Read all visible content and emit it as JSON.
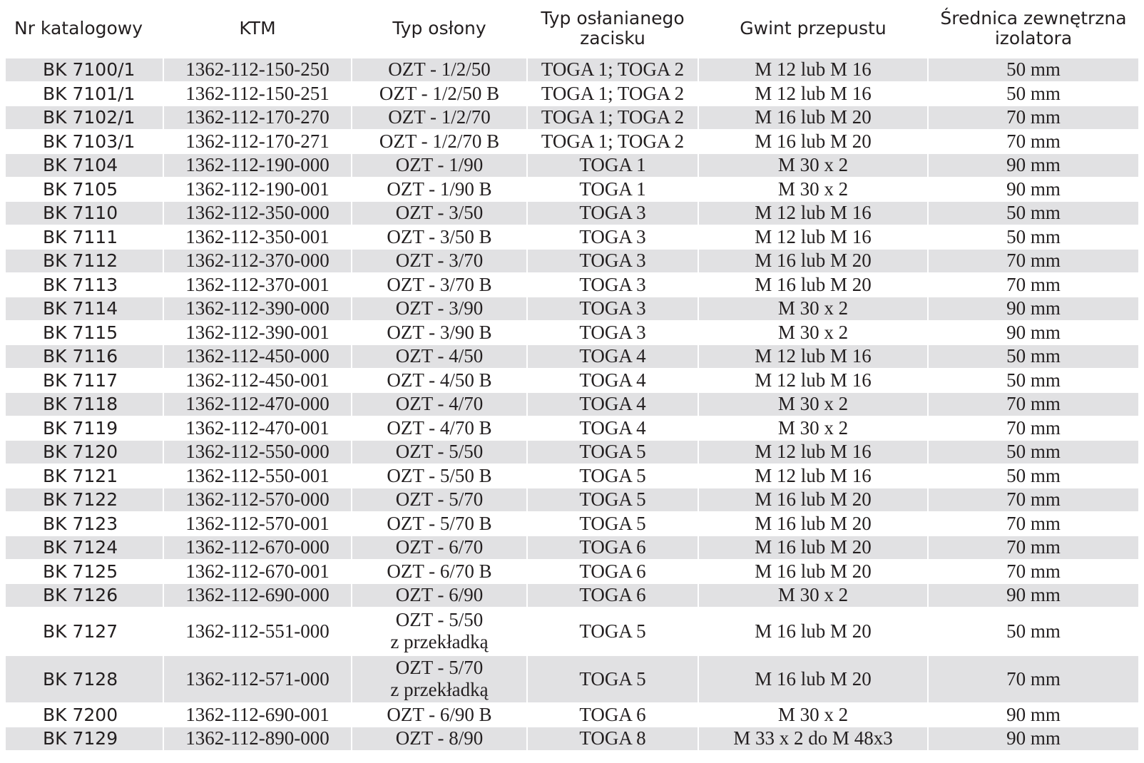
{
  "table": {
    "headers": [
      "Nr  katalogowy",
      "KTM",
      "Typ osłony",
      "Typ osłanianego\nzacisku",
      "Gwint przepustu",
      "Średnica zewnętrzna\nizolatora"
    ],
    "rows": [
      [
        "BK 7100/1",
        "1362-112-150-250",
        "OZT - 1/2/50",
        "TOGA 1; TOGA 2",
        "M 12 lub M 16",
        "50 mm"
      ],
      [
        "BK 7101/1",
        "1362-112-150-251",
        "OZT - 1/2/50 B",
        "TOGA 1; TOGA 2",
        "M 12 lub M 16",
        "50 mm"
      ],
      [
        "BK 7102/1",
        "1362-112-170-270",
        "OZT - 1/2/70",
        "TOGA 1; TOGA 2",
        "M 16 lub M 20",
        "70 mm"
      ],
      [
        "BK 7103/1",
        "1362-112-170-271",
        "OZT - 1/2/70 B",
        "TOGA 1; TOGA 2",
        "M 16 lub M 20",
        "70 mm"
      ],
      [
        "BK 7104",
        "1362-112-190-000",
        "OZT - 1/90",
        "TOGA 1",
        "M 30 x 2",
        "90 mm"
      ],
      [
        "BK 7105",
        "1362-112-190-001",
        "OZT - 1/90 B",
        "TOGA 1",
        "M 30 x 2",
        "90 mm"
      ],
      [
        "BK 7110",
        "1362-112-350-000",
        "OZT - 3/50",
        "TOGA 3",
        "M 12 lub M 16",
        "50 mm"
      ],
      [
        "BK 7111",
        "1362-112-350-001",
        "OZT - 3/50 B",
        "TOGA 3",
        "M 12 lub M 16",
        "50 mm"
      ],
      [
        "BK 7112",
        "1362-112-370-000",
        "OZT - 3/70",
        "TOGA 3",
        "M 16 lub M 20",
        "70 mm"
      ],
      [
        "BK 7113",
        "1362-112-370-001",
        "OZT - 3/70 B",
        "TOGA 3",
        "M 16 lub M 20",
        "70 mm"
      ],
      [
        "BK 7114",
        "1362-112-390-000",
        "OZT - 3/90",
        "TOGA 3",
        "M 30 x 2",
        "90 mm"
      ],
      [
        "BK 7115",
        "1362-112-390-001",
        "OZT - 3/90 B",
        "TOGA 3",
        "M 30 x 2",
        "90 mm"
      ],
      [
        "BK 7116",
        "1362-112-450-000",
        "OZT - 4/50",
        "TOGA 4",
        "M 12 lub M 16",
        "50 mm"
      ],
      [
        "BK 7117",
        "1362-112-450-001",
        "OZT - 4/50 B",
        "TOGA 4",
        "M 12 lub M 16",
        "50 mm"
      ],
      [
        "BK 7118",
        "1362-112-470-000",
        "OZT - 4/70",
        "TOGA 4",
        "M 30 x 2",
        "70 mm"
      ],
      [
        "BK 7119",
        "1362-112-470-001",
        "OZT - 4/70 B",
        "TOGA 4",
        "M 30 x 2",
        "70 mm"
      ],
      [
        "BK 7120",
        "1362-112-550-000",
        "OZT - 5/50",
        "TOGA 5",
        "M 12 lub M 16",
        "50 mm"
      ],
      [
        "BK 7121",
        "1362-112-550-001",
        "OZT - 5/50 B",
        "TOGA 5",
        "M 12 lub M 16",
        "50 mm"
      ],
      [
        "BK 7122",
        "1362-112-570-000",
        "OZT - 5/70",
        "TOGA 5",
        "M 16 lub M 20",
        "70 mm"
      ],
      [
        "BK 7123",
        "1362-112-570-001",
        "OZT - 5/70 B",
        "TOGA 5",
        "M 16 lub M 20",
        "70 mm"
      ],
      [
        "BK 7124",
        "1362-112-670-000",
        "OZT - 6/70",
        "TOGA 6",
        "M 16 lub M 20",
        "70 mm"
      ],
      [
        "BK 7125",
        "1362-112-670-001",
        "OZT - 6/70 B",
        "TOGA 6",
        "M 16 lub M 20",
        "70 mm"
      ],
      [
        "BK 7126",
        "1362-112-690-000",
        "OZT - 6/90",
        "TOGA 6",
        "M 30 x 2",
        "90 mm"
      ],
      [
        "BK 7127",
        "1362-112-551-000",
        "OZT - 5/50\nz przekładką",
        "TOGA 5",
        "M 16 lub M 20",
        "50 mm"
      ],
      [
        "BK 7128",
        "1362-112-571-000",
        "OZT - 5/70\nz przekładką",
        "TOGA 5",
        "M 16 lub M 20",
        "70 mm"
      ],
      [
        "BK 7200",
        "1362-112-690-001",
        "OZT - 6/90 B",
        "TOGA 6",
        "M 30 x 2",
        "90 mm"
      ],
      [
        "BK 7129",
        "1362-112-890-000",
        "OZT - 8/90",
        "TOGA 8",
        "M 33 x 2 do M 48x3",
        "90 mm"
      ]
    ]
  }
}
